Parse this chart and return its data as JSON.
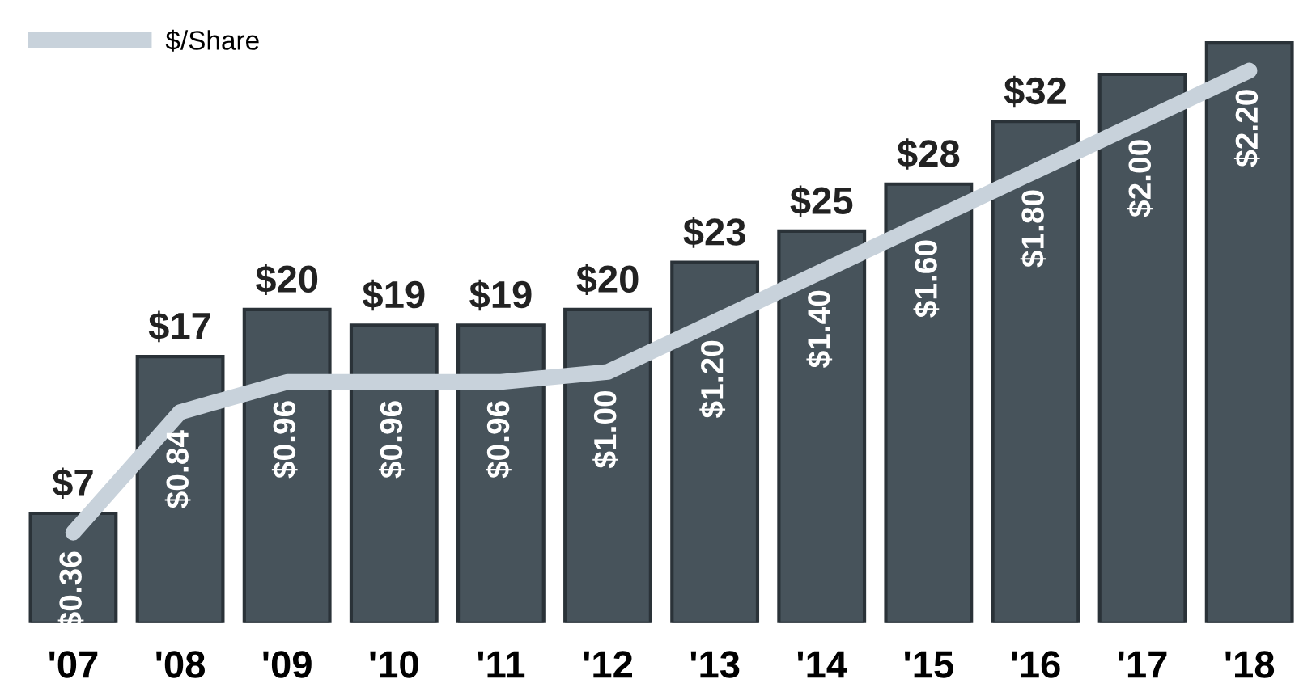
{
  "chart_data": {
    "type": "bar",
    "categories": [
      "'07",
      "'08",
      "'09",
      "'10",
      "'11",
      "'12",
      "'13",
      "'14",
      "'15",
      "'16",
      "'17",
      "'18"
    ],
    "values": [
      7,
      17,
      20,
      19,
      19,
      20,
      23,
      25,
      28,
      32,
      35,
      37
    ],
    "value_labels": [
      "$7",
      "$17",
      "$20",
      "$19",
      "$19",
      "$20",
      "$23",
      "$25",
      "$28",
      "$32",
      null,
      null
    ],
    "color": "#47535b",
    "series": [
      {
        "name": "$/Share",
        "type": "line",
        "axis": "y2",
        "color": "#c8d2db",
        "values": [
          0.36,
          0.84,
          0.96,
          0.96,
          0.96,
          1.0,
          1.2,
          1.4,
          1.6,
          1.8,
          2.0,
          2.2
        ],
        "value_labels": [
          "$0.36",
          "$0.84",
          "$0.96",
          "$0.96",
          "$0.96",
          "$1.00",
          "$1.20",
          "$1.40",
          "$1.60",
          "$1.80",
          "$2.00",
          "$2.20"
        ]
      }
    ],
    "tick_labels": "x",
    "legend": "top left",
    "marker": "none",
    "line_style": "solid"
  }
}
